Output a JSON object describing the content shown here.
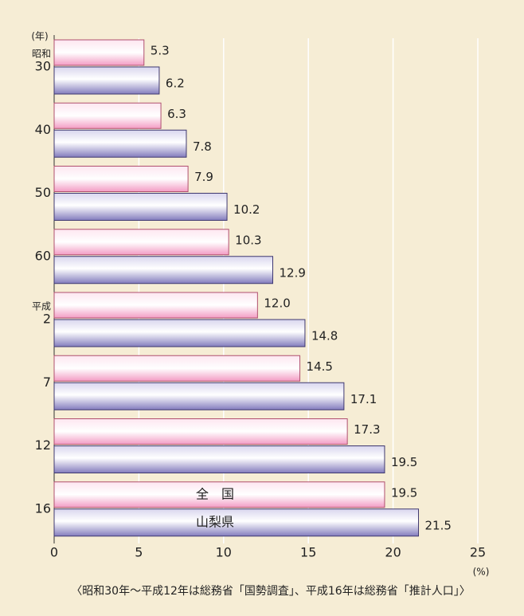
{
  "chart_data": {
    "type": "hbar",
    "y_axis_label": "(年)",
    "x_axis_label": "(%)",
    "categories": [
      "30",
      "40",
      "50",
      "60",
      "2",
      "7",
      "12",
      "16"
    ],
    "eras": [
      "昭和",
      null,
      null,
      null,
      "平成",
      null,
      null,
      null
    ],
    "series": [
      {
        "name": "全　国",
        "color": "#f39cc4",
        "values": [
          5.3,
          6.3,
          7.9,
          10.3,
          12.0,
          14.5,
          17.3,
          19.5
        ],
        "value_labels": [
          "5.3",
          "6.3",
          "7.9",
          "10.3",
          "12.0",
          "14.5",
          "17.3",
          "19.5"
        ]
      },
      {
        "name": "山梨県",
        "color": "#837cbd",
        "values": [
          6.2,
          7.8,
          10.2,
          12.9,
          14.8,
          17.1,
          19.5,
          21.5
        ]
      }
    ],
    "xlim": [
      0,
      25
    ],
    "xticks": [
      0,
      5,
      10,
      15,
      20,
      25
    ],
    "grid": true,
    "source": "〈昭和30年〜平成12年は総務省「国勢調査」、平成16年は総務省「推計人口」〉"
  }
}
